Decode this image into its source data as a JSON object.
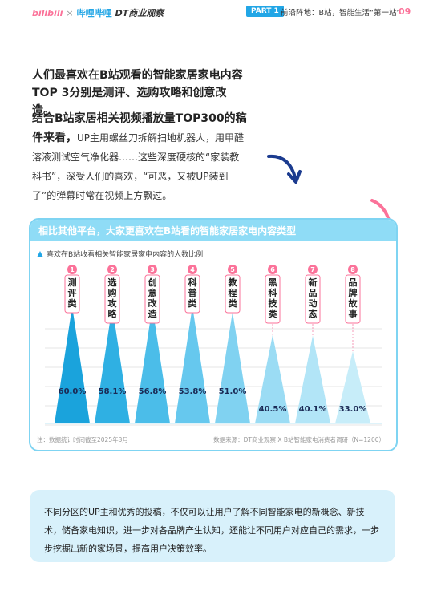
{
  "header": {
    "logo_bilibili": "bilibili",
    "logo_sep": "×",
    "logo_brand": "哔哩哔哩",
    "logo_dt": "DT商业观察",
    "part": "PART 1",
    "section": "前沿阵地：B站，智能生活“第一站”",
    "page": "09"
  },
  "intro": {
    "headline": "人们最喜欢在B站观看的智能家居家电内容TOP 3分别是测评、选购攻略和创意改造。",
    "lead": "结合B站家居相关视频播放量TOP300的稿件来看，",
    "body": "UP主用螺丝刀拆解扫地机器人，用甲醛溶液测试空气净化器……这些深度硬核的“家装教科书”，深受人们的喜欢，“可恶，又被UP装到了”的弹幕时常在视频上方飘过。"
  },
  "chart_data": {
    "type": "bar",
    "title": "相比其他平台，大家更喜欢在B站看的智能家居家电内容类型",
    "legend": "喜欢在B站收看相关智能家居家电内容的人数比例",
    "ranks": [
      "1",
      "2",
      "3",
      "4",
      "5",
      "6",
      "7",
      "8"
    ],
    "categories": [
      "测评类",
      "选购攻略",
      "创意改造",
      "科普类",
      "教程类",
      "黑科技类",
      "新品动态",
      "品牌故事"
    ],
    "values": [
      60.0,
      58.1,
      56.8,
      53.8,
      51.0,
      40.5,
      40.1,
      33.0
    ],
    "value_labels": [
      "60.0%",
      "58.1%",
      "56.8%",
      "53.8%",
      "51.0%",
      "40.5%",
      "40.1%",
      "33.0%"
    ],
    "unit": "%",
    "ylim": [
      0,
      100
    ],
    "grid": true,
    "note": "注：数据统计时间截至2025年3月",
    "source": "数据来源：DT商业观察 X B站智能家电消费者调研（N=1200）"
  },
  "summary": {
    "text": "不同分区的UP主和优秀的投稿，不仅可以让用户了解不同智能家电的新概念、新技术，储备家电知识，进一步对各品牌产生认知，还能让不同用户对应自己的需求，一步步挖掘出新的家场景，提高用户决策效率。"
  },
  "colors": {
    "accent": "#22a6e6",
    "pink": "#fb7299",
    "light": "#8fdcf6"
  }
}
